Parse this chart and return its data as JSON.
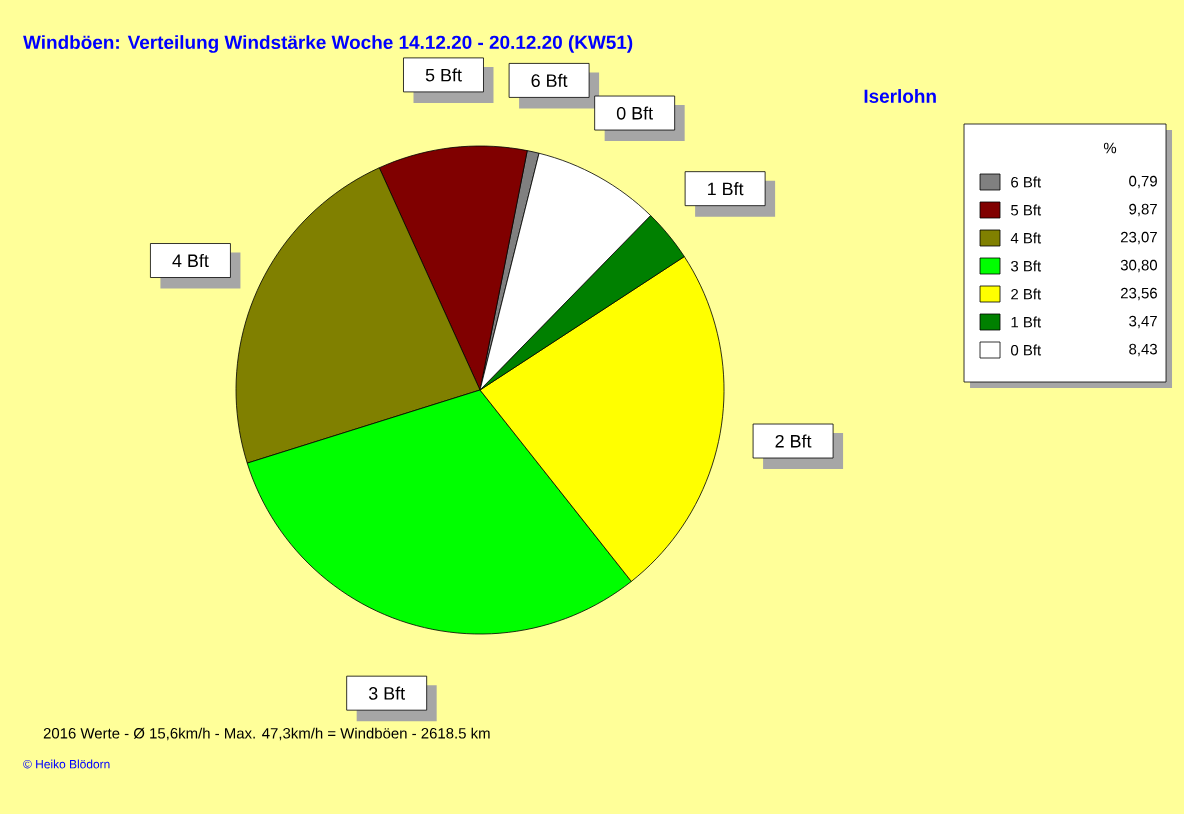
{
  "chart_data": {
    "type": "pie",
    "title": "Windböen: Verteilung Windstärke  Woche 14.12.20 - 20.12.20 (KW51)",
    "subtitle": "Iserlohn",
    "categories": [
      "6 Bft",
      "5 Bft",
      "4 Bft",
      "3 Bft",
      "2 Bft",
      "1 Bft",
      "0 Bft"
    ],
    "values": [
      0.79,
      9.87,
      23.07,
      30.8,
      23.56,
      3.47,
      8.43
    ],
    "value_labels": [
      "0,79",
      "9,87",
      "23,07",
      "30,80",
      "23,56",
      "3,47",
      "8,43"
    ],
    "colors": [
      "#808080",
      "#800000",
      "#808000",
      "#00ff00",
      "#ffff00",
      "#008000",
      "#ffffff"
    ],
    "legend_title": "%",
    "legend": "right",
    "annotations": [
      "2016 Werte   -   Ø 15,6km/h  -  Max. 47,3km/h = Windböen   -   2618.5 km",
      "© Heiko Blödorn"
    ]
  }
}
